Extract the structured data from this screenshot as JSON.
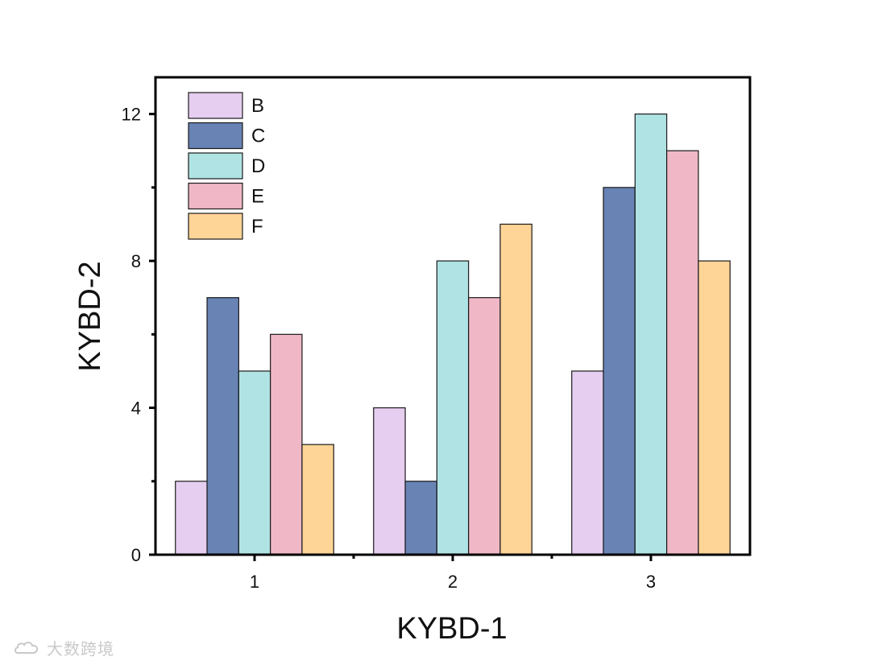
{
  "watermark": {
    "text": "大数跨境",
    "icon": "cloud-logo-icon"
  },
  "chart_data": {
    "type": "bar",
    "title": "",
    "xlabel": "KYBD-1",
    "ylabel": "KYBD-2",
    "categories": [
      "1",
      "2",
      "3"
    ],
    "ylim": [
      0,
      13
    ],
    "yticks": [
      0,
      4,
      8,
      12
    ],
    "yticks_minor": [
      2,
      6,
      10
    ],
    "legend_position": "top-left",
    "grid": false,
    "series": [
      {
        "name": "B",
        "color": "#e6cef0",
        "values": [
          2,
          4,
          5
        ]
      },
      {
        "name": "C",
        "color": "#6883b4",
        "values": [
          7,
          2,
          10
        ]
      },
      {
        "name": "D",
        "color": "#b0e3e4",
        "values": [
          5,
          8,
          12
        ]
      },
      {
        "name": "E",
        "color": "#f0b8c6",
        "values": [
          6,
          7,
          11
        ]
      },
      {
        "name": "F",
        "color": "#fed497",
        "values": [
          3,
          9,
          8
        ]
      }
    ]
  }
}
